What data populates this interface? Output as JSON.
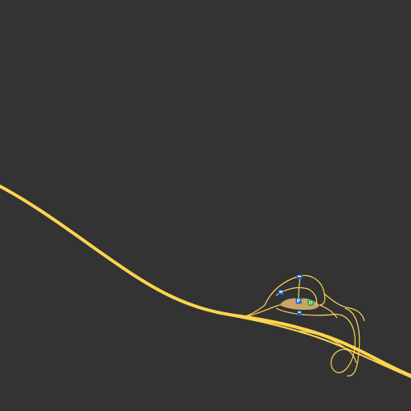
{
  "map": {
    "background": "#333333",
    "road_color": "#ffd54f",
    "area_color": "#d9b36a",
    "pois": [
      {
        "icon": "parking-icon",
        "label": "P",
        "color": "#1e66c9"
      },
      {
        "icon": "car-icon",
        "label": "",
        "color": "#1e66c9"
      },
      {
        "icon": "bus-icon",
        "label": "",
        "color": "#1e66c9"
      },
      {
        "icon": "fuel-icon",
        "label": "",
        "color": "#1e66c9"
      },
      {
        "icon": "recycling-icon",
        "label": "",
        "color": "#19a03c"
      }
    ]
  }
}
